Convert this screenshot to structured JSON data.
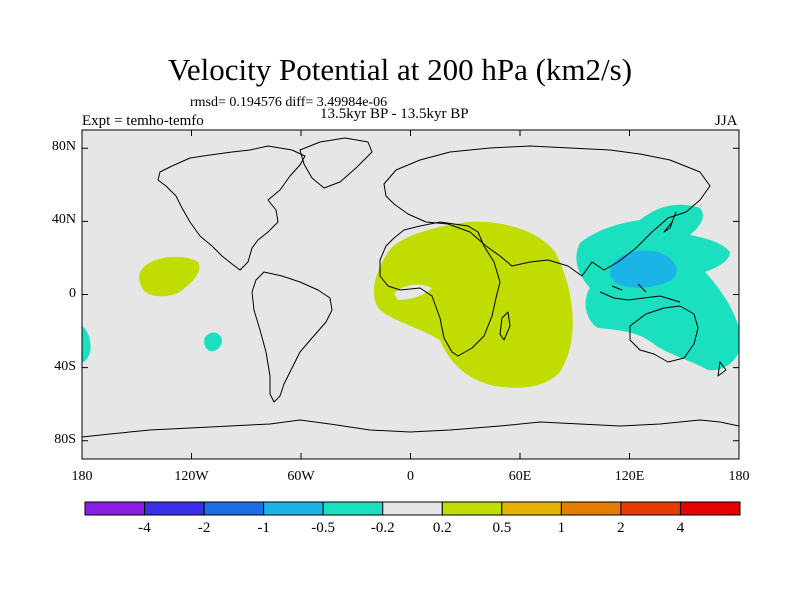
{
  "title": "Velocity Potential at 200 hPa (km2/s)",
  "stats_line": "rmsd= 0.194576 diff= 3.49984e-06",
  "subtitle": "13.5kyr BP - 13.5kyr BP",
  "experiment_label": "Expt = temho-temfo",
  "season": "JJA",
  "map": {
    "lat_range": [
      -90,
      90
    ],
    "lon_range": [
      -180,
      180
    ],
    "lat_ticks": [
      {
        "value": 80,
        "label": "80N"
      },
      {
        "value": 40,
        "label": "40N"
      },
      {
        "value": 0,
        "label": "0"
      },
      {
        "value": -40,
        "label": "40S"
      },
      {
        "value": -80,
        "label": "80S"
      }
    ],
    "lon_ticks": [
      {
        "value": -180,
        "label": "180"
      },
      {
        "value": -120,
        "label": "120W"
      },
      {
        "value": -60,
        "label": "60W"
      },
      {
        "value": 0,
        "label": "0"
      },
      {
        "value": 60,
        "label": "60E"
      },
      {
        "value": 120,
        "label": "120E"
      },
      {
        "value": 180,
        "label": "180"
      }
    ],
    "background_color": "#e6e6e6"
  },
  "colorbar": {
    "colors": [
      "#8a1ee6",
      "#3a2ee6",
      "#1a6ee6",
      "#1ab4e6",
      "#1ae0c0",
      "#e6e6e6",
      "#c0dc00",
      "#e6b400",
      "#e67c00",
      "#e63c00",
      "#e60000"
    ],
    "labels": [
      "-4",
      "-2",
      "-1",
      "-0.5",
      "-0.2",
      "0.2",
      "0.5",
      "1",
      "2",
      "4"
    ]
  }
}
